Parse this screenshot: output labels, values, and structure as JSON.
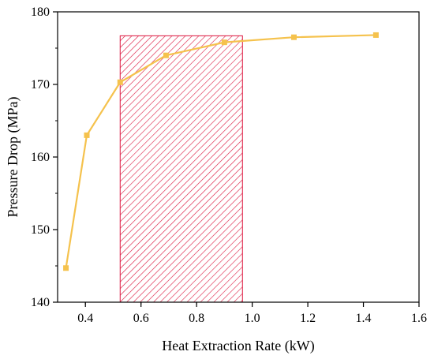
{
  "chart_data": {
    "type": "line",
    "title": "",
    "xlabel": "Heat Extraction Rate (kW)",
    "ylabel": "Pressure Drop (MPa)",
    "xlim": [
      0.3,
      1.6
    ],
    "ylim": [
      140,
      180
    ],
    "xticks": [
      0.4,
      0.6,
      0.8,
      1.0,
      1.2,
      1.4,
      1.6
    ],
    "xtick_labels": [
      "0.4",
      "0.6",
      "0.8",
      "1.0",
      "1.2",
      "1.4",
      "1.6"
    ],
    "yticks": [
      140,
      150,
      160,
      170,
      180
    ],
    "ytick_labels": [
      "140",
      "150",
      "160",
      "170",
      "180"
    ],
    "grid": false,
    "series": [
      {
        "color": "#F5C24D",
        "marker": "square",
        "x": [
          0.33,
          0.405,
          0.525,
          0.69,
          0.9,
          1.15,
          1.445
        ],
        "y": [
          144.7,
          163.0,
          170.3,
          174.0,
          175.8,
          176.5,
          176.8
        ]
      }
    ],
    "highlight_region": {
      "x": [
        0.525,
        0.965
      ],
      "y": [
        140,
        176.7
      ],
      "pattern": "diagonal-hatch",
      "color": "#DC143C"
    }
  }
}
